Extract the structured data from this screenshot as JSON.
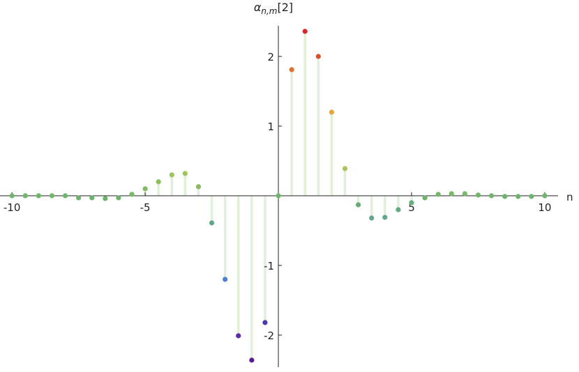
{
  "chart_data": {
    "type": "stem",
    "ylabel": {
      "base": "α",
      "sub": "n,m",
      "suffix": "[2]"
    },
    "xlabel": "n",
    "x": [
      -10,
      -9.5,
      -9,
      -8.5,
      -8,
      -7.5,
      -7,
      -6.5,
      -6,
      -5.5,
      -5,
      -4.5,
      -4,
      -3.5,
      -3,
      -2.5,
      -2,
      -1.5,
      -1,
      -0.5,
      0,
      0.5,
      1,
      1.5,
      2,
      2.5,
      3,
      3.5,
      4,
      4.5,
      5,
      5.5,
      6,
      6.5,
      7,
      7.5,
      8,
      8.5,
      9,
      9.5,
      10
    ],
    "values": [
      0,
      0,
      0,
      0,
      0,
      -0.03,
      -0.03,
      -0.04,
      -0.03,
      0.02,
      0.1,
      0.2,
      0.3,
      0.32,
      0.13,
      -0.39,
      -1.2,
      -2.01,
      -2.36,
      -1.82,
      0,
      1.81,
      2.36,
      2.0,
      1.2,
      0.39,
      -0.13,
      -0.32,
      -0.31,
      -0.2,
      -0.1,
      -0.03,
      0.02,
      0.03,
      0.03,
      0.01,
      0,
      -0.01,
      -0.01,
      -0.01,
      0
    ],
    "colors": [
      "#6db66a",
      "#6db66a",
      "#6db66a",
      "#6db66a",
      "#6db66a",
      "#6cb46c",
      "#6cb46c",
      "#6cb46c",
      "#6cb46c",
      "#74b866",
      "#82bc60",
      "#8fc05c",
      "#9cc45a",
      "#9ec45a",
      "#86bd5f",
      "#5fa48a",
      "#4a7fd2",
      "#5a2aa8",
      "#5c1a90",
      "#4a3ab2",
      "#6db66a",
      "#e0702e",
      "#d62a2a",
      "#d8522a",
      "#e8a33a",
      "#a8c658",
      "#63ad78",
      "#5fa68a",
      "#5fa68a",
      "#62aa80",
      "#66ae76",
      "#6cb46c",
      "#74b866",
      "#76b965",
      "#76b965",
      "#70b668",
      "#6db66a",
      "#6cb46c",
      "#6cb46c",
      "#6cb46c",
      "#6db66a"
    ],
    "stem_color": "#e2efda",
    "xlim": [
      -10.45,
      10.5
    ],
    "ylim": [
      -2.46,
      2.44
    ],
    "xticks": [
      -10,
      -5,
      5,
      10
    ],
    "yticks": [
      -2,
      -1,
      1,
      2
    ]
  }
}
